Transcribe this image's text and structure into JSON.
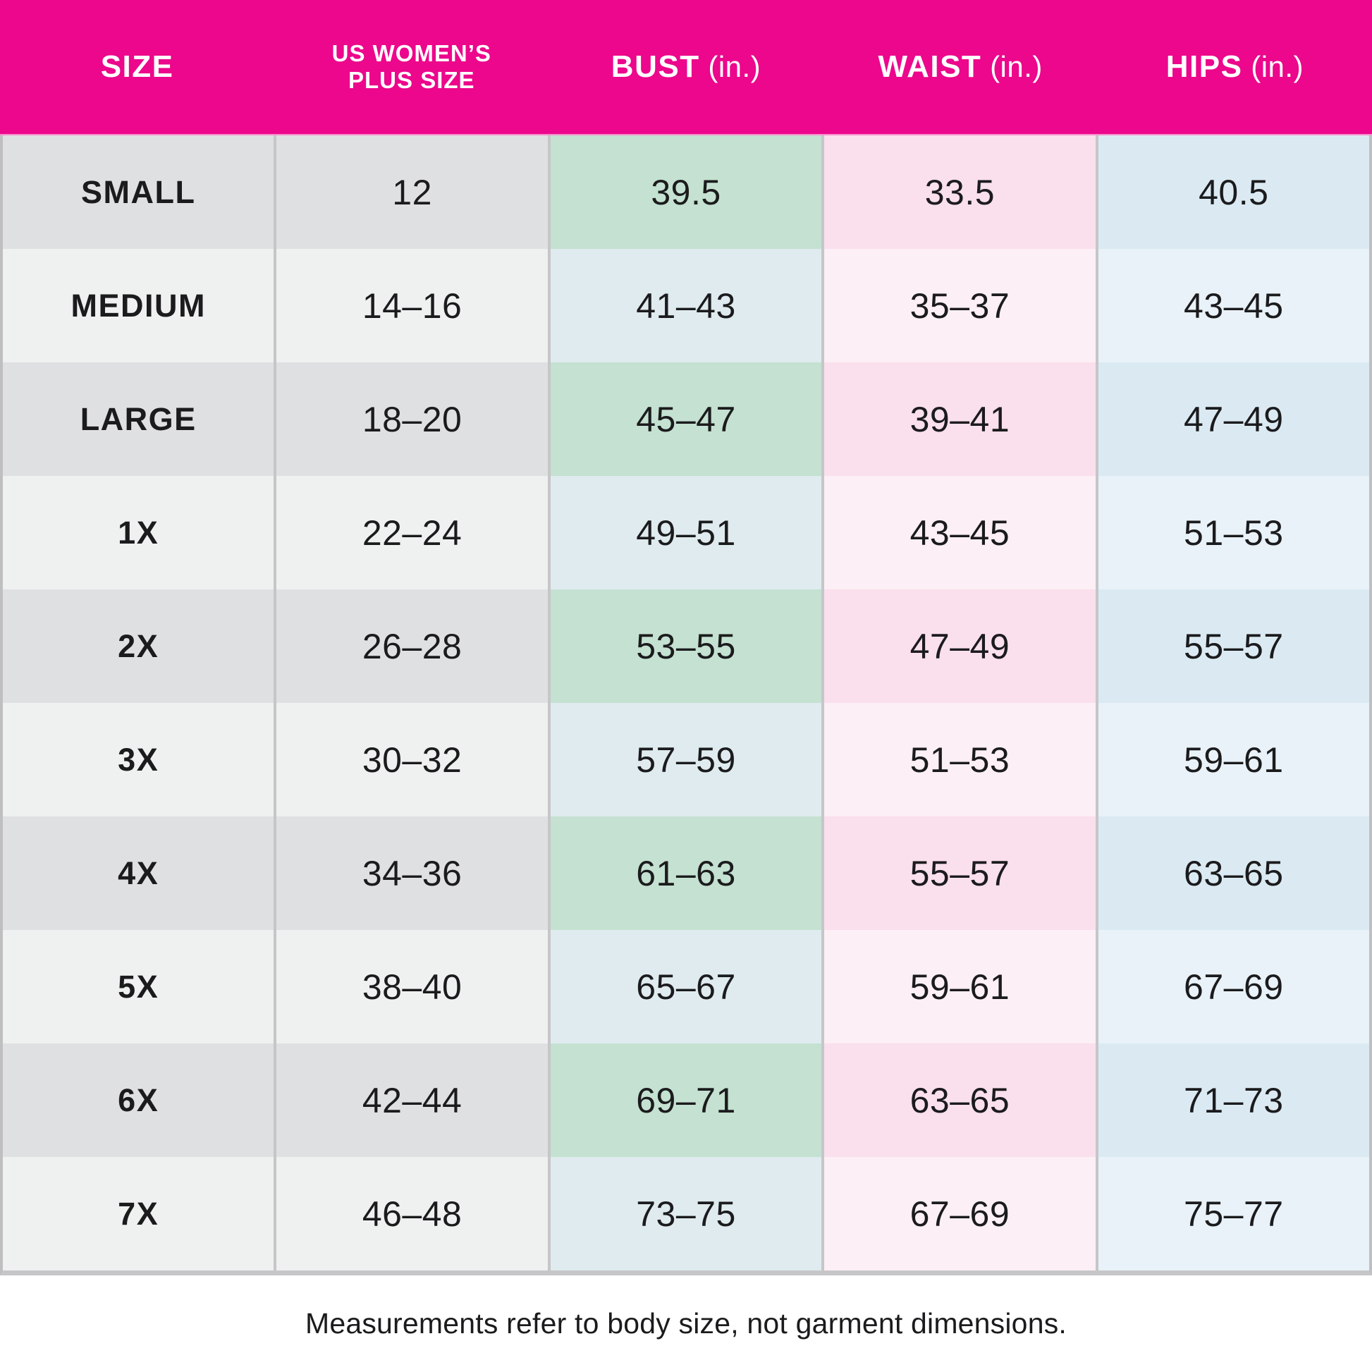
{
  "header": {
    "columns": [
      {
        "key": "size",
        "label": "SIZE",
        "unit": ""
      },
      {
        "key": "plus",
        "label": "US WOMEN’S PLUS SIZE",
        "unit": ""
      },
      {
        "key": "bust",
        "label": "BUST",
        "unit": "(in.)"
      },
      {
        "key": "waist",
        "label": "WAIST",
        "unit": "(in.)"
      },
      {
        "key": "hips",
        "label": "HIPS",
        "unit": "(in.)"
      }
    ]
  },
  "chart_data": {
    "type": "table",
    "columns": [
      "SIZE",
      "US WOMEN’S PLUS SIZE",
      "BUST (in.)",
      "WAIST (in.)",
      "HIPS (in.)"
    ],
    "rows": [
      [
        "SMALL",
        "12",
        "39.5",
        "33.5",
        "40.5"
      ],
      [
        "MEDIUM",
        "14–16",
        "41–43",
        "35–37",
        "43–45"
      ],
      [
        "LARGE",
        "18–20",
        "45–47",
        "39–41",
        "47–49"
      ],
      [
        "1X",
        "22–24",
        "49–51",
        "43–45",
        "51–53"
      ],
      [
        "2X",
        "26–28",
        "53–55",
        "47–49",
        "55–57"
      ],
      [
        "3X",
        "30–32",
        "57–59",
        "51–53",
        "59–61"
      ],
      [
        "4X",
        "34–36",
        "61–63",
        "55–57",
        "63–65"
      ],
      [
        "5X",
        "38–40",
        "65–67",
        "59–61",
        "67–69"
      ],
      [
        "6X",
        "42–44",
        "69–71",
        "63–65",
        "71–73"
      ],
      [
        "7X",
        "46–48",
        "73–75",
        "67–69",
        "75–77"
      ]
    ],
    "note": "Measurements refer to body size, not garment dimensions."
  },
  "footer": {
    "note": "Measurements refer to body size, not garment dimensions."
  },
  "colors": {
    "header_bg": "#EC078C",
    "header_text": "#FFFFFF",
    "text": "#1B1B1D",
    "separator": "#C6C6C8",
    "border": "#BFBFC1",
    "odd_gray": "#DFE0E2",
    "even_gray": "#EFF0F0",
    "odd_bust": "#C4E1D1",
    "even_bust": "#DFEBEF",
    "odd_waist": "#FADFEC",
    "even_waist": "#FCEFF5",
    "odd_hips": "#DBEAF2",
    "even_hips": "#E8F2F8",
    "footer_bg": "#FFFFFF"
  }
}
